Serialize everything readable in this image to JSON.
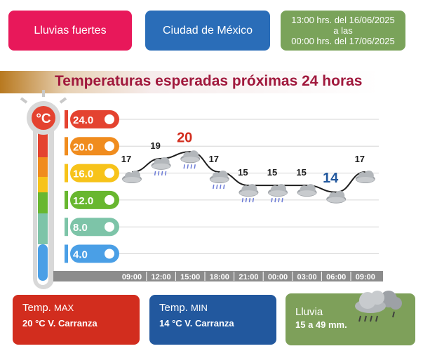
{
  "header": {
    "alert_label": "Lluvias fuertes",
    "location": "Ciudad de México",
    "period_line1": "13:00 hrs. del 16/06/2025",
    "period_line2": "a las",
    "period_line3": "00:00 hrs. del 17/06/2025"
  },
  "banner": {
    "title": "Temperaturas esperadas próximas 24 horas"
  },
  "colors": {
    "alert": "#e8185a",
    "location": "#2a6db8",
    "period": "#7aa35a",
    "max_highlight": "#d22d1e",
    "min_highlight": "#22589e"
  },
  "thermometer": {
    "unit": "°C",
    "scale": [
      "24.0",
      "20.0",
      "16.0",
      "12.0",
      "8.0",
      "4.0"
    ]
  },
  "chart_data": {
    "type": "line",
    "x": [
      "09:00",
      "12:00",
      "15:00",
      "18:00",
      "21:00",
      "00:00",
      "03:00",
      "06:00",
      "09:00"
    ],
    "y": [
      17,
      19,
      20,
      17,
      15,
      15,
      15,
      14,
      17
    ],
    "labels": [
      "17",
      "19",
      "20",
      "17",
      "15",
      "15",
      "15",
      "14",
      "17"
    ],
    "icons": [
      "cloud-icon",
      "rain-cloud-icon",
      "rain-cloud-icon",
      "rain-cloud-icon",
      "rain-cloud-icon",
      "rain-cloud-icon",
      "cloud-icon",
      "cloud-icon",
      "cloud-icon"
    ],
    "max_index": 2,
    "min_index": 7,
    "ylim": [
      2,
      26
    ],
    "grid": true
  },
  "cards": {
    "max": {
      "title_prefix": "Temp.",
      "title_suffix": "MAX",
      "value": "20 °C  V. Carranza"
    },
    "min": {
      "title_prefix": "Temp.",
      "title_suffix": "MIN",
      "value": "14 °C  V. Carranza"
    },
    "rain": {
      "title": "Lluvia",
      "value": "15 a 49 mm."
    }
  }
}
